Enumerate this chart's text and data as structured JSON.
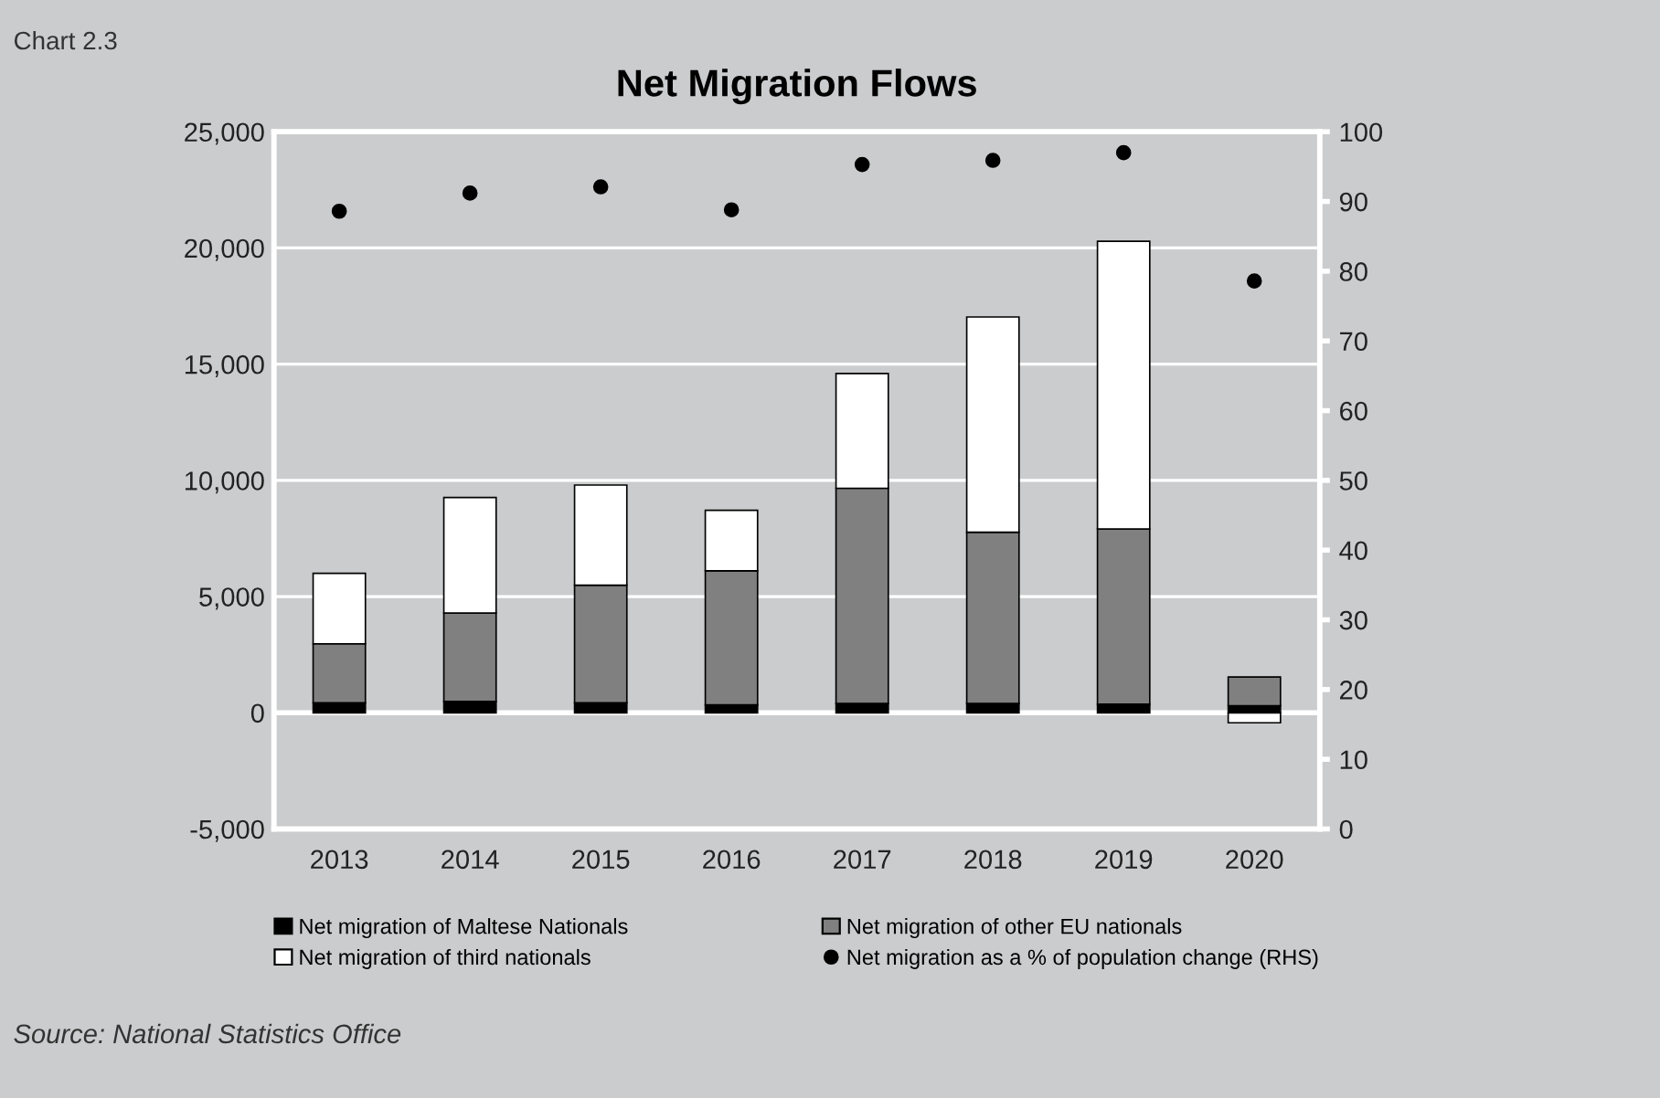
{
  "chart_data": {
    "type": "bar",
    "title": "Net Migration Flows",
    "stacked": true,
    "categories": [
      "2013",
      "2014",
      "2015",
      "2016",
      "2017",
      "2018",
      "2019",
      "2020"
    ],
    "series": [
      {
        "name": "Net migration of Maltese Nationals",
        "color": "#000000",
        "values": [
          430,
          490,
          430,
          340,
          400,
          400,
          370,
          300
        ]
      },
      {
        "name": "Net migration of other EU nationals",
        "color": "#808080",
        "values": [
          2540,
          3800,
          5060,
          5770,
          9260,
          7370,
          7540,
          1240
        ]
      },
      {
        "name": "Net migration of third nationals",
        "color": "#ffffff",
        "values": [
          3030,
          4970,
          4310,
          2600,
          4940,
          9260,
          12380,
          -430
        ]
      },
      {
        "name": "Net migration as a % of population change (RHS)",
        "type": "scatter",
        "axis": "y2",
        "color": "#000000",
        "marker": "circle",
        "values": [
          88.6,
          91.2,
          92.1,
          88.8,
          95.3,
          95.9,
          97.0,
          78.6
        ]
      }
    ],
    "ylim": [
      -5000,
      25000
    ],
    "yticks": [
      {
        "value": -5000,
        "label": "-5,000"
      },
      0,
      {
        "value": 5000,
        "label": "5,000"
      },
      {
        "value": 10000,
        "label": "10,000"
      },
      {
        "value": 15000,
        "label": "15,000"
      },
      {
        "value": 20000,
        "label": "20,000"
      },
      {
        "value": 25000,
        "label": "25,000"
      }
    ],
    "y2lim": [
      0,
      100
    ],
    "y2ticks": [
      0,
      10,
      20,
      30,
      40,
      50,
      60,
      70,
      80,
      90,
      100
    ],
    "grid": "y",
    "legend": "bottom",
    "annotations": [
      "Chart 2.3",
      "Source: National Statistics Office"
    ]
  }
}
